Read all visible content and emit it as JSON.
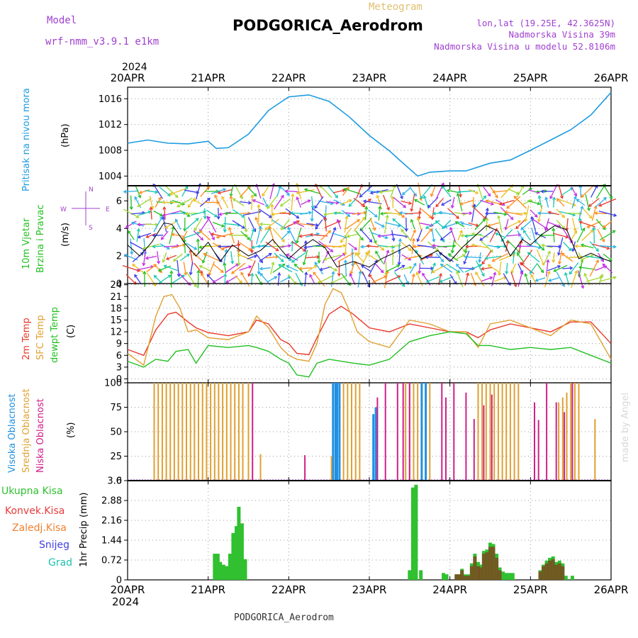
{
  "header": {
    "model_label": "Model",
    "model_name": "wrf-nmm_v3.9.1 e1km",
    "product": "Meteogram",
    "station": "PODGORICA_Aerodrom",
    "lonlat": "lon,lat (19.25E, 42.3625N)",
    "elevation": "Nadmorska Visina 39m",
    "model_elevation": "Nadmorska Visina u modelu 52.8106m",
    "credit": "made by Angel",
    "footer_station": "PODGORICA_Aerodrom"
  },
  "colors": {
    "pressure": "#1e9be0",
    "temp2m": "#e8392a",
    "sfc": "#e0a030",
    "dewpt": "#22c022",
    "high": "#2090e0",
    "mid": "#e0a030",
    "low": "#d0208a",
    "total": "#30c030",
    "conv": "#e83a3a",
    "frz": "#f08030",
    "snow": "#4040e0",
    "grad": "#20c0b0",
    "purple": "#a040d0",
    "dark": "#000000"
  },
  "chart_data": [
    {
      "type": "line",
      "panel": "pressure",
      "ylabel": "Pritisak na nivou mora",
      "unit": "(hPa)",
      "yticks": [
        1004,
        1008,
        1012,
        1016
      ],
      "ylim": [
        1002.5,
        1017.8
      ],
      "x_days": [
        0,
        0.25,
        0.5,
        0.75,
        1,
        1.1,
        1.25,
        1.5,
        1.75,
        2,
        2.25,
        2.5,
        2.75,
        3,
        3.25,
        3.4,
        3.6,
        3.75,
        4,
        4.2,
        4.5,
        4.75,
        5,
        5.25,
        5.5,
        5.75,
        6
      ],
      "values": [
        1009.1,
        1009.6,
        1009.1,
        1009.0,
        1009.4,
        1008.3,
        1008.4,
        1010.5,
        1014.2,
        1016.3,
        1016.6,
        1015.6,
        1013.2,
        1010.3,
        1007.9,
        1006.2,
        1004.0,
        1004.6,
        1004.8,
        1004.8,
        1006.0,
        1006.5,
        1008.0,
        1009.6,
        1011.2,
        1013.5,
        1017.0
      ]
    },
    {
      "type": "line",
      "panel": "wind",
      "ylabel": "10m Vjetar",
      "ylabel2": "Brzina i Pravac",
      "unit": "(m/s)",
      "yticks": [
        0,
        2,
        4,
        6
      ],
      "ylim": [
        0,
        7.1
      ],
      "legend_compass": [
        "N",
        "E",
        "W",
        "S"
      ],
      "x_days": [
        0,
        0.15,
        0.3,
        0.45,
        0.55,
        0.7,
        0.85,
        1,
        1.15,
        1.3,
        1.5,
        1.65,
        1.8,
        2,
        2.15,
        2.3,
        2.45,
        2.6,
        2.8,
        3,
        3.15,
        3.3,
        3.5,
        3.65,
        3.85,
        4,
        4.15,
        4.3,
        4.45,
        4.6,
        4.75,
        4.9,
        5,
        5.15,
        5.3,
        5.45,
        5.6,
        5.75,
        5.9,
        6
      ],
      "values": [
        2.8,
        2.0,
        3.0,
        4.4,
        4.3,
        3.0,
        2.0,
        3.0,
        1.6,
        2.8,
        2.0,
        2.4,
        3.2,
        1.8,
        2.6,
        3.2,
        2.6,
        1.2,
        1.6,
        1.2,
        1.8,
        2.2,
        2.8,
        1.8,
        2.4,
        1.6,
        2.6,
        3.4,
        4.2,
        3.8,
        2.0,
        3.2,
        2.8,
        3.6,
        4.2,
        3.9,
        1.8,
        2.2,
        1.8,
        1.6
      ]
    },
    {
      "type": "line",
      "panel": "temperature",
      "ylabel": "2m Temp",
      "ylabel2": "SFC Temp",
      "ylabel3": "dewpt Temp",
      "unit": "(C)",
      "yticks": [
        0,
        3,
        6,
        9,
        12,
        15,
        18,
        21,
        24
      ],
      "ylim": [
        -1,
        24.3
      ],
      "series": [
        {
          "name": "2m Temp",
          "color_key": "temp2m",
          "x_days": [
            0,
            0.2,
            0.35,
            0.5,
            0.6,
            0.75,
            0.85,
            1,
            1.25,
            1.5,
            1.6,
            1.75,
            1.9,
            2,
            2.1,
            2.25,
            2.35,
            2.5,
            2.65,
            2.8,
            3,
            3.25,
            3.5,
            3.75,
            4,
            4.2,
            4.35,
            4.5,
            4.75,
            5,
            5.25,
            5.5,
            5.75,
            6
          ],
          "values": [
            7.5,
            6.0,
            12.5,
            16.5,
            17.0,
            14.5,
            13.0,
            11.8,
            11.0,
            12.0,
            15.0,
            14.0,
            10.0,
            9.0,
            6.5,
            6.2,
            10.5,
            16.5,
            18.5,
            16.5,
            13.0,
            12.0,
            14.0,
            13.0,
            12.0,
            12.0,
            10.5,
            12.5,
            14.0,
            13.0,
            12.0,
            14.5,
            14.5,
            9.0
          ]
        },
        {
          "name": "SFC Temp",
          "color_key": "sfc",
          "x_days": [
            0,
            0.2,
            0.35,
            0.45,
            0.55,
            0.65,
            0.75,
            0.85,
            1,
            1.25,
            1.5,
            1.6,
            1.75,
            1.9,
            2,
            2.1,
            2.25,
            2.35,
            2.45,
            2.55,
            2.65,
            2.75,
            2.85,
            3,
            3.25,
            3.5,
            3.75,
            4,
            4.2,
            4.35,
            4.5,
            4.75,
            5,
            5.25,
            5.5,
            5.75,
            6
          ],
          "values": [
            6.5,
            3.5,
            16.0,
            21.0,
            21.5,
            18.0,
            12.0,
            12.5,
            10.5,
            10.0,
            12.0,
            16.0,
            13.0,
            8.0,
            6.0,
            5.0,
            4.5,
            9.0,
            19.0,
            23.0,
            22.0,
            17.5,
            12.0,
            9.5,
            8.0,
            15.0,
            14.0,
            12.0,
            12.0,
            8.0,
            14.0,
            15.0,
            13.0,
            11.0,
            15.0,
            14.0,
            5.0
          ]
        },
        {
          "name": "dewpt Temp",
          "color_key": "dewpt",
          "x_days": [
            0,
            0.2,
            0.35,
            0.5,
            0.6,
            0.75,
            0.85,
            1,
            1.25,
            1.5,
            1.6,
            1.75,
            1.9,
            2,
            2.1,
            2.25,
            2.35,
            2.5,
            2.65,
            2.8,
            3,
            3.25,
            3.5,
            3.75,
            4,
            4.2,
            4.35,
            4.5,
            4.75,
            5,
            5.25,
            5.5,
            5.75,
            6
          ],
          "values": [
            4.5,
            3.0,
            5.0,
            4.5,
            7.0,
            7.5,
            4.0,
            8.5,
            8.0,
            8.5,
            8.0,
            7.0,
            5.0,
            4.0,
            1.0,
            0.5,
            4.0,
            5.0,
            4.5,
            4.0,
            3.5,
            5.0,
            9.5,
            11.0,
            12.0,
            11.5,
            8.5,
            8.5,
            7.5,
            8.0,
            7.5,
            8.0,
            6.0,
            4.0
          ]
        }
      ]
    },
    {
      "type": "bar",
      "panel": "clouds",
      "ylabel": "Visoka Oblacnost",
      "ylabel2": "Srednja Oblacnost",
      "ylabel3": "Niska Oblacnost",
      "unit": "(%)",
      "yticks": [
        0,
        25,
        50,
        75,
        100
      ],
      "ylim": [
        0,
        100
      ],
      "series": [
        {
          "name": "Visoka Oblacnost",
          "color_key": "high",
          "bars": [
            [
              2.55,
              100
            ],
            [
              2.58,
              100
            ],
            [
              2.6,
              100
            ],
            [
              2.63,
              100
            ],
            [
              3.05,
              68
            ],
            [
              3.08,
              75
            ],
            [
              3.65,
              100
            ],
            [
              3.7,
              100
            ]
          ]
        },
        {
          "name": "Srednja Oblacnost",
          "color_key": "mid",
          "bars": [
            [
              0.33,
              100
            ],
            [
              0.38,
              100
            ],
            [
              0.43,
              100
            ],
            [
              0.48,
              100
            ],
            [
              0.53,
              100
            ],
            [
              0.58,
              100
            ],
            [
              0.63,
              100
            ],
            [
              0.68,
              100
            ],
            [
              0.73,
              100
            ],
            [
              0.78,
              100
            ],
            [
              0.83,
              100
            ],
            [
              0.88,
              100
            ],
            [
              0.93,
              100
            ],
            [
              0.98,
              100
            ],
            [
              1.03,
              100
            ],
            [
              1.08,
              100
            ],
            [
              1.13,
              100
            ],
            [
              1.18,
              100
            ],
            [
              1.23,
              100
            ],
            [
              1.28,
              100
            ],
            [
              1.33,
              100
            ],
            [
              1.38,
              100
            ],
            [
              1.43,
              100
            ],
            [
              1.5,
              100
            ],
            [
              1.65,
              27
            ],
            [
              2.53,
              25
            ],
            [
              2.68,
              100
            ],
            [
              2.73,
              100
            ],
            [
              2.78,
              100
            ],
            [
              2.83,
              100
            ],
            [
              2.88,
              100
            ],
            [
              3.45,
              100
            ],
            [
              3.5,
              100
            ],
            [
              3.55,
              100
            ],
            [
              3.6,
              100
            ],
            [
              3.75,
              100
            ],
            [
              4.35,
              100
            ],
            [
              4.4,
              100
            ],
            [
              4.45,
              100
            ],
            [
              4.5,
              100
            ],
            [
              4.55,
              100
            ],
            [
              4.6,
              100
            ],
            [
              4.65,
              100
            ],
            [
              4.7,
              100
            ],
            [
              4.75,
              100
            ],
            [
              4.8,
              100
            ],
            [
              4.85,
              100
            ],
            [
              5.35,
              80
            ],
            [
              5.4,
              85
            ],
            [
              5.45,
              90
            ],
            [
              5.5,
              100
            ],
            [
              5.55,
              100
            ],
            [
              5.6,
              100
            ],
            [
              5.8,
              63
            ]
          ]
        },
        {
          "name": "Niska Oblacnost",
          "color_key": "low",
          "bars": [
            [
              1.55,
              100
            ],
            [
              2.2,
              26
            ],
            [
              3.1,
              85
            ],
            [
              3.2,
              100
            ],
            [
              3.35,
              100
            ],
            [
              3.42,
              100
            ],
            [
              3.5,
              100
            ],
            [
              3.9,
              100
            ],
            [
              3.95,
              85
            ],
            [
              4.05,
              100
            ],
            [
              4.2,
              90
            ],
            [
              4.3,
              63
            ],
            [
              4.42,
              77
            ],
            [
              4.52,
              88
            ],
            [
              5.05,
              80
            ],
            [
              5.1,
              62
            ],
            [
              5.2,
              100
            ],
            [
              5.32,
              80
            ],
            [
              5.42,
              70
            ],
            [
              5.52,
              100
            ]
          ]
        }
      ]
    },
    {
      "type": "bar",
      "panel": "precip",
      "ylabel": "1hr Precip",
      "unit": "(mm)",
      "yticks": [
        0,
        0.72,
        1.44,
        2.16,
        2.88,
        3.6
      ],
      "ytick_labels": [
        "0",
        "0.72",
        "1.44",
        "2.16",
        "2.88",
        "3.6"
      ],
      "ylim": [
        0,
        3.6
      ],
      "legend": [
        "Ukupna Kisa",
        "Konvek.Kisa",
        "Zaledj.Kisa",
        "Snijeg",
        "Grad"
      ],
      "legend_color_keys": [
        "total",
        "conv",
        "frz",
        "snow",
        "grad"
      ],
      "total_bars": [
        [
          1.08,
          0.95
        ],
        [
          1.12,
          0.95
        ],
        [
          1.15,
          0.65
        ],
        [
          1.19,
          0.55
        ],
        [
          1.23,
          0.5
        ],
        [
          1.27,
          0.95
        ],
        [
          1.31,
          1.7
        ],
        [
          1.35,
          1.95
        ],
        [
          1.38,
          2.65
        ],
        [
          1.42,
          2.05
        ],
        [
          1.46,
          0.75
        ],
        [
          3.5,
          0.35
        ],
        [
          3.54,
          3.35
        ],
        [
          3.58,
          3.45
        ],
        [
          3.64,
          0.35
        ],
        [
          3.92,
          0.25
        ],
        [
          3.96,
          0.2
        ],
        [
          4.08,
          0.2
        ],
        [
          4.12,
          0.2
        ],
        [
          4.15,
          0.4
        ],
        [
          4.19,
          0.2
        ],
        [
          4.23,
          0.2
        ],
        [
          4.27,
          0.6
        ],
        [
          4.31,
          0.95
        ],
        [
          4.35,
          0.65
        ],
        [
          4.38,
          0.55
        ],
        [
          4.42,
          1.05
        ],
        [
          4.46,
          1.1
        ],
        [
          4.5,
          1.35
        ],
        [
          4.54,
          1.3
        ],
        [
          4.58,
          0.95
        ],
        [
          4.62,
          0.45
        ],
        [
          4.66,
          0.3
        ],
        [
          4.7,
          0.25
        ],
        [
          4.74,
          0.25
        ],
        [
          4.78,
          0.25
        ],
        [
          5.12,
          0.35
        ],
        [
          5.16,
          0.55
        ],
        [
          5.2,
          0.7
        ],
        [
          5.24,
          0.8
        ],
        [
          5.28,
          0.85
        ],
        [
          5.32,
          0.65
        ],
        [
          5.36,
          0.7
        ],
        [
          5.4,
          0.6
        ],
        [
          5.44,
          0.15
        ],
        [
          5.52,
          0.15
        ]
      ],
      "conv_bars": [
        [
          4.08,
          0.2
        ],
        [
          4.12,
          0.2
        ],
        [
          4.15,
          0.35
        ],
        [
          4.19,
          0.15
        ],
        [
          4.23,
          0.15
        ],
        [
          4.27,
          0.5
        ],
        [
          4.31,
          0.85
        ],
        [
          4.35,
          0.5
        ],
        [
          4.38,
          0.45
        ],
        [
          4.42,
          0.95
        ],
        [
          4.46,
          1.0
        ],
        [
          4.5,
          1.2
        ],
        [
          4.54,
          1.2
        ],
        [
          4.58,
          0.8
        ],
        [
          4.62,
          0.35
        ],
        [
          5.12,
          0.3
        ],
        [
          5.16,
          0.5
        ],
        [
          5.2,
          0.6
        ],
        [
          5.24,
          0.7
        ],
        [
          5.28,
          0.75
        ],
        [
          5.32,
          0.55
        ],
        [
          5.36,
          0.6
        ],
        [
          5.4,
          0.5
        ]
      ]
    }
  ],
  "x_axis": {
    "year": "2024",
    "days": [
      "20APR",
      "21APR",
      "22APR",
      "23APR",
      "24APR",
      "25APR",
      "26APR"
    ]
  }
}
